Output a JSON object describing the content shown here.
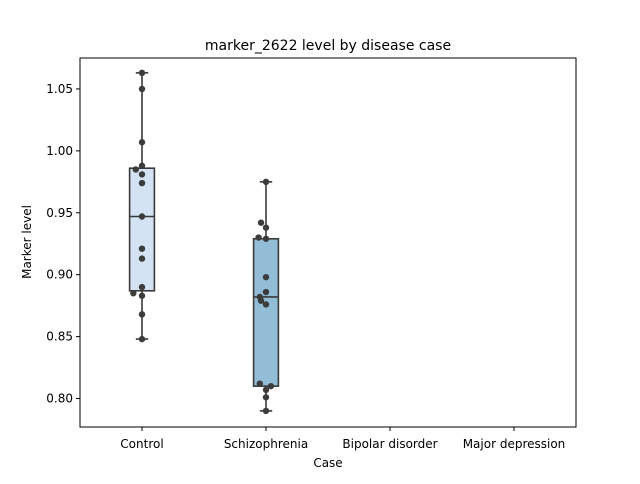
{
  "chart_data": {
    "type": "box",
    "title": "marker_2622 level by disease case",
    "xlabel": "Case",
    "ylabel": "Marker level",
    "ylim": [
      0.777,
      1.075
    ],
    "yticks": [
      0.8,
      0.85,
      0.9,
      0.95,
      1.0,
      1.05
    ],
    "categories": [
      "Control",
      "Schizophrenia",
      "Bipolar disorder",
      "Major depression"
    ],
    "grid": false,
    "legend": "none",
    "groups": [
      {
        "category": "Control",
        "color": "#d3e3f3",
        "box": {
          "whisker_low": 0.848,
          "q1": 0.887,
          "median": 0.947,
          "q3": 0.986,
          "whisker_high": 1.063
        },
        "points": [
          {
            "x_offset": 0.0,
            "y": 1.063
          },
          {
            "x_offset": 0.0,
            "y": 1.05
          },
          {
            "x_offset": 0.0,
            "y": 1.007
          },
          {
            "x_offset": 0.0,
            "y": 0.988
          },
          {
            "x_offset": -0.05,
            "y": 0.985
          },
          {
            "x_offset": 0.0,
            "y": 0.981
          },
          {
            "x_offset": 0.0,
            "y": 0.974
          },
          {
            "x_offset": 0.0,
            "y": 0.947
          },
          {
            "x_offset": 0.0,
            "y": 0.921
          },
          {
            "x_offset": 0.0,
            "y": 0.913
          },
          {
            "x_offset": 0.0,
            "y": 0.89
          },
          {
            "x_offset": -0.07,
            "y": 0.885
          },
          {
            "x_offset": 0.0,
            "y": 0.883
          },
          {
            "x_offset": 0.0,
            "y": 0.868
          },
          {
            "x_offset": 0.0,
            "y": 0.848
          }
        ]
      },
      {
        "category": "Schizophrenia",
        "color": "#93bcd7",
        "box": {
          "whisker_low": 0.79,
          "q1": 0.81,
          "median": 0.882,
          "q3": 0.929,
          "whisker_high": 0.975
        },
        "points": [
          {
            "x_offset": 0.0,
            "y": 0.975
          },
          {
            "x_offset": -0.04,
            "y": 0.942
          },
          {
            "x_offset": 0.0,
            "y": 0.938
          },
          {
            "x_offset": -0.06,
            "y": 0.93
          },
          {
            "x_offset": 0.0,
            "y": 0.929
          },
          {
            "x_offset": 0.0,
            "y": 0.898
          },
          {
            "x_offset": 0.0,
            "y": 0.886
          },
          {
            "x_offset": -0.05,
            "y": 0.882
          },
          {
            "x_offset": -0.04,
            "y": 0.879
          },
          {
            "x_offset": 0.0,
            "y": 0.876
          },
          {
            "x_offset": -0.05,
            "y": 0.812
          },
          {
            "x_offset": 0.04,
            "y": 0.81
          },
          {
            "x_offset": 0.0,
            "y": 0.807
          },
          {
            "x_offset": 0.0,
            "y": 0.801
          },
          {
            "x_offset": 0.0,
            "y": 0.79
          }
        ]
      },
      {
        "category": "Bipolar disorder",
        "color": "#5a9ecc",
        "box": null,
        "points": []
      },
      {
        "category": "Major depression",
        "color": "#2f78b4",
        "box": null,
        "points": []
      }
    ]
  }
}
